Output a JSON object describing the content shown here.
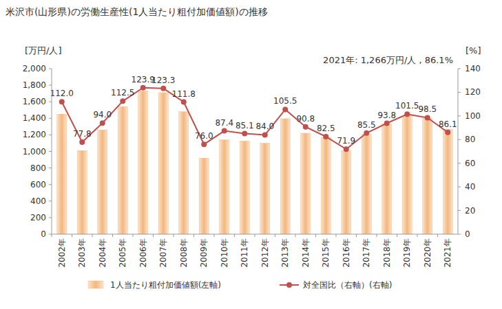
{
  "chart_data": {
    "type": "bar",
    "title": "米沢市(山形県)の労働生産性(1人当たり粗付加価値額)の推移",
    "y_label": "[万円/人]",
    "y2_label": "[%]",
    "annotation": "2021年: 1,266万円/人 , 86.1%",
    "categories": [
      "2002年",
      "2003年",
      "2004年",
      "2005年",
      "2006年",
      "2007年",
      "2008年",
      "2009年",
      "2010年",
      "2011年",
      "2012年",
      "2013年",
      "2014年",
      "2015年",
      "2016年",
      "2017年",
      "2018年",
      "2019年",
      "2020年",
      "2021年"
    ],
    "series": [
      {
        "name": "1人当たり粗付加価値額(左軸)",
        "type": "bar",
        "color": "#f2b77f",
        "values": [
          1450,
          1010,
          1260,
          1540,
          1730,
          1710,
          1480,
          920,
          1140,
          1125,
          1100,
          1395,
          1220,
          1170,
          1010,
          1210,
          1330,
          1430,
          1400,
          1266
        ]
      },
      {
        "name": "対全国比（右軸）(右軸)",
        "type": "line",
        "axis": "y2",
        "color": "#c0504d",
        "marker": "circle",
        "data_labels": true,
        "values": [
          112.0,
          77.8,
          94.0,
          112.5,
          123.9,
          123.3,
          111.8,
          76.0,
          87.4,
          85.1,
          84.0,
          105.5,
          90.8,
          82.5,
          71.9,
          85.5,
          93.8,
          101.5,
          98.5,
          86.1
        ],
        "value_labels": [
          "112.0",
          "77.8",
          "94.0",
          "112.5",
          "123.9",
          "123.3",
          "111.8",
          "76.0",
          "87.4",
          "85.1",
          "84.0",
          "105.5",
          "90.8",
          "82.5",
          "71.9",
          "85.5",
          "93.8",
          "101.5",
          "98.5",
          "86.1"
        ]
      }
    ],
    "ylim": [
      0,
      2000
    ],
    "yticks": [
      0,
      200,
      400,
      600,
      800,
      {
        "value": 1000,
        "label": "1,000"
      },
      {
        "value": 1200,
        "label": "1,200"
      },
      {
        "value": 1400,
        "label": "1,400"
      },
      {
        "value": 1600,
        "label": "1,600"
      },
      {
        "value": 1800,
        "label": "1,800"
      },
      {
        "value": 2000,
        "label": "2,000"
      }
    ],
    "y2lim": [
      0,
      140
    ],
    "y2ticks": [
      0,
      20,
      40,
      60,
      80,
      100,
      120,
      140
    ],
    "grid": false,
    "legend": "bottom"
  }
}
